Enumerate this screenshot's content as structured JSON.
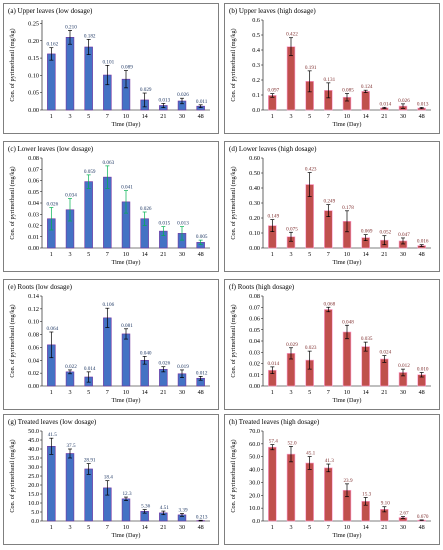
{
  "colors": {
    "blue": "#4472c4",
    "blue_edge": "#7030a0",
    "red": "#c0504d",
    "red_edge": "#ff99cc",
    "label_blue": "#1f3864",
    "label_red": "#7f2f2f",
    "err_green": "#00b050",
    "err_purple": "#7030a0",
    "frame": "#7f7f7f"
  },
  "chart_data": [
    {
      "type": "bar",
      "title": "(a) Upper leaves  (low dosage)",
      "xlabel": "Time  (Day)",
      "ylabel": "Con. of pyrimethanil  (mg/kg)",
      "categories": [
        "1",
        "3",
        "5",
        "7",
        "10",
        "14",
        "21",
        "30",
        "48"
      ],
      "values": [
        0.162,
        0.21,
        0.182,
        0.101,
        0.089,
        0.029,
        0.013,
        0.026,
        0.011
      ],
      "labels": [
        "0.162",
        "0.210",
        "0.182",
        "0.101",
        "0.089",
        "0.029",
        "0.013",
        "0.026",
        "0.011"
      ],
      "errors": [
        0.018,
        0.02,
        0.022,
        0.028,
        0.025,
        0.02,
        0.006,
        0.008,
        0.004
      ],
      "ylim": [
        0,
        0.26
      ],
      "yticks": [
        "0.00",
        "0.05",
        "0.10",
        "0.15",
        "0.20",
        "0.25"
      ],
      "ytick_values": [
        0,
        0.05,
        0.1,
        0.15,
        0.2,
        0.25
      ],
      "color": "blue",
      "error_color": "black"
    },
    {
      "type": "bar",
      "title": "(b) Upper leaves  (high dosage)",
      "xlabel": "Time  (Day)",
      "ylabel": "Con. of pyrimethanil  (mg/kg)",
      "categories": [
        "1",
        "3",
        "5",
        "7",
        "10",
        "14",
        "21",
        "30",
        "48"
      ],
      "values": [
        0.097,
        0.422,
        0.191,
        0.131,
        0.085,
        0.124,
        0.014,
        0.026,
        0.013
      ],
      "labels": [
        "0.097",
        "0.422",
        "0.191",
        "0.131",
        "0.085",
        "0.124",
        "0.014",
        "0.026",
        "0.013"
      ],
      "errors": [
        0.012,
        0.06,
        0.07,
        0.05,
        0.025,
        0.008,
        0.004,
        0.015,
        0.004
      ],
      "ylim": [
        0,
        0.6
      ],
      "yticks": [
        "0.0",
        "0.1",
        "0.2",
        "0.3",
        "0.4",
        "0.5",
        "0.6"
      ],
      "ytick_values": [
        0,
        0.1,
        0.2,
        0.3,
        0.4,
        0.5,
        0.6
      ],
      "color": "red",
      "error_color": "black"
    },
    {
      "type": "bar",
      "title": "(c) Lower leaves  (low dosage)",
      "xlabel": "Time  (Day)",
      "ylabel": "Con. of pyrimethanil  (mg/kg)",
      "categories": [
        "1",
        "3",
        "5",
        "7",
        "10",
        "14",
        "21",
        "30",
        "48"
      ],
      "values": [
        0.026,
        0.034,
        0.059,
        0.063,
        0.041,
        0.026,
        0.015,
        0.013,
        0.005
      ],
      "labels": [
        "0.026",
        "0.034",
        "0.059",
        "0.063",
        "0.041",
        "0.026",
        "0.015",
        "0.013",
        "0.005"
      ],
      "errors": [
        0.01,
        0.01,
        0.006,
        0.01,
        0.01,
        0.006,
        0.004,
        0.006,
        0.002
      ],
      "ylim": [
        0,
        0.08
      ],
      "yticks": [
        "0.00",
        "0.01",
        "0.02",
        "0.03",
        "0.04",
        "0.05",
        "0.06",
        "0.07",
        "0.08"
      ],
      "ytick_values": [
        0,
        0.01,
        0.02,
        0.03,
        0.04,
        0.05,
        0.06,
        0.07,
        0.08
      ],
      "color": "blue",
      "error_color": "green"
    },
    {
      "type": "bar",
      "title": "(d) Lower leaves  (high dosage)",
      "xlabel": "Time  (Day)",
      "ylabel": "Con. of pyrimethanil  (mg/kg)",
      "categories": [
        "1",
        "3",
        "5",
        "7",
        "10",
        "14",
        "21",
        "30",
        "48"
      ],
      "values": [
        0.149,
        0.075,
        0.423,
        0.249,
        0.178,
        0.069,
        0.052,
        0.047,
        0.016
      ],
      "labels": [
        "0.149",
        "0.075",
        "0.423",
        "0.249",
        "0.178",
        "0.069",
        "0.052",
        "0.047",
        "0.016"
      ],
      "errors": [
        0.04,
        0.03,
        0.08,
        0.04,
        0.07,
        0.02,
        0.03,
        0.02,
        0.006
      ],
      "ylim": [
        0,
        0.6
      ],
      "yticks": [
        "0.00",
        "0.10",
        "0.20",
        "0.30",
        "0.40",
        "0.50",
        "0.60"
      ],
      "ytick_values": [
        0,
        0.1,
        0.2,
        0.3,
        0.4,
        0.5,
        0.6
      ],
      "color": "red",
      "error_color": "black"
    },
    {
      "type": "bar",
      "title": "(e) Roots (low dosage)",
      "xlabel": "Time  (Day)",
      "ylabel": "Con. of pyrimethanil  (mg/kg)",
      "categories": [
        "1",
        "3",
        "5",
        "7",
        "10",
        "14",
        "21",
        "30",
        "48"
      ],
      "values": [
        0.064,
        0.022,
        0.014,
        0.106,
        0.081,
        0.04,
        0.026,
        0.019,
        0.012
      ],
      "labels": [
        "0.064",
        "0.022",
        "0.014",
        "0.106",
        "0.081",
        "0.040",
        "0.026",
        "0.019",
        "0.012"
      ],
      "errors": [
        0.02,
        0.003,
        0.008,
        0.015,
        0.008,
        0.006,
        0.004,
        0.006,
        0.003
      ],
      "ylim": [
        0,
        0.14
      ],
      "yticks": [
        "0.00",
        "0.02",
        "0.04",
        "0.06",
        "0.08",
        "0.10",
        "0.12",
        "0.14"
      ],
      "ytick_values": [
        0,
        0.02,
        0.04,
        0.06,
        0.08,
        0.1,
        0.12,
        0.14
      ],
      "color": "blue",
      "error_color": "black"
    },
    {
      "type": "bar",
      "title": "(f) Roots (high dosage)",
      "xlabel": "Time  (Day)",
      "ylabel": "Con. of pyrimethanil  (mg/kg)",
      "categories": [
        "1",
        "3",
        "5",
        "7",
        "10",
        "14",
        "21",
        "30",
        "48"
      ],
      "values": [
        0.014,
        0.029,
        0.023,
        0.068,
        0.048,
        0.035,
        0.024,
        0.012,
        0.01
      ],
      "labels": [
        "0.014",
        "0.029",
        "0.023",
        "0.068",
        "0.048",
        "0.035",
        "0.024",
        "0.012",
        "0.010"
      ],
      "errors": [
        0.003,
        0.005,
        0.008,
        0.002,
        0.006,
        0.004,
        0.003,
        0.003,
        0.002
      ],
      "ylim": [
        0,
        0.08
      ],
      "yticks": [
        "0.00",
        "0.01",
        "0.02",
        "0.03",
        "0.04",
        "0.05",
        "0.06",
        "0.07",
        "0.08"
      ],
      "ytick_values": [
        0,
        0.01,
        0.02,
        0.03,
        0.04,
        0.05,
        0.06,
        0.07,
        0.08
      ],
      "color": "red",
      "error_color": "black"
    },
    {
      "type": "bar",
      "title": "(g) Treated leaves (low dosage)",
      "xlabel": "Time  (Day)",
      "ylabel": "Con. of pyrimethanil  (mg/kg)",
      "categories": [
        "1",
        "3",
        "5",
        "7",
        "10",
        "14",
        "21",
        "30",
        "48"
      ],
      "values": [
        41.5,
        37.5,
        28.91,
        18.4,
        12.3,
        5.36,
        4.51,
        3.39,
        0.213
      ],
      "labels": [
        "41.5",
        "37.5",
        "28.91",
        "18.4",
        "12.3",
        "5.36",
        "4.51",
        "3.39",
        "0.213"
      ],
      "errors": [
        4.5,
        2.5,
        3.0,
        4.0,
        1.0,
        1.0,
        1.0,
        0.8,
        0.2
      ],
      "ylim": [
        0,
        50
      ],
      "yticks": [
        "0.0",
        "5.0",
        "10.0",
        "15.0",
        "20.0",
        "25.0",
        "30.0",
        "35.0",
        "40.0",
        "45.0",
        "50.0"
      ],
      "ytick_values": [
        0,
        5,
        10,
        15,
        20,
        25,
        30,
        35,
        40,
        45,
        50
      ],
      "color": "blue",
      "error_color": "black"
    },
    {
      "type": "bar",
      "title": "(h) Treated leaves (high dosage)",
      "xlabel": "Time  (Day)",
      "ylabel": "Con. of pyrimethanil  (mg/kg)",
      "categories": [
        "1",
        "3",
        "5",
        "7",
        "10",
        "14",
        "21",
        "30",
        "48"
      ],
      "values": [
        57.4,
        52.0,
        45.1,
        41.3,
        23.9,
        15.3,
        9.1,
        2.67,
        0.67
      ],
      "labels": [
        "57.4",
        "52.0",
        "45.1",
        "41.3",
        "23.9",
        "15.3",
        "9.10",
        "2.67",
        "0.670"
      ],
      "errors": [
        2.0,
        6.0,
        5.0,
        3.0,
        5.0,
        3.0,
        2.0,
        0.8,
        0.2
      ],
      "ylim": [
        0,
        70
      ],
      "yticks": [
        "0.0",
        "10.0",
        "20.0",
        "30.0",
        "40.0",
        "50.0",
        "60.0",
        "70.0"
      ],
      "ytick_values": [
        0,
        10,
        20,
        30,
        40,
        50,
        60,
        70
      ],
      "color": "red",
      "error_color": "black"
    }
  ]
}
